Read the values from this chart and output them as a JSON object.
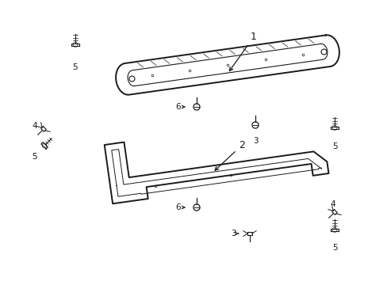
{
  "bg_color": "#ffffff",
  "fig_width": 4.89,
  "fig_height": 3.6,
  "dpi": 100,
  "line_color": "#1a1a1a"
}
